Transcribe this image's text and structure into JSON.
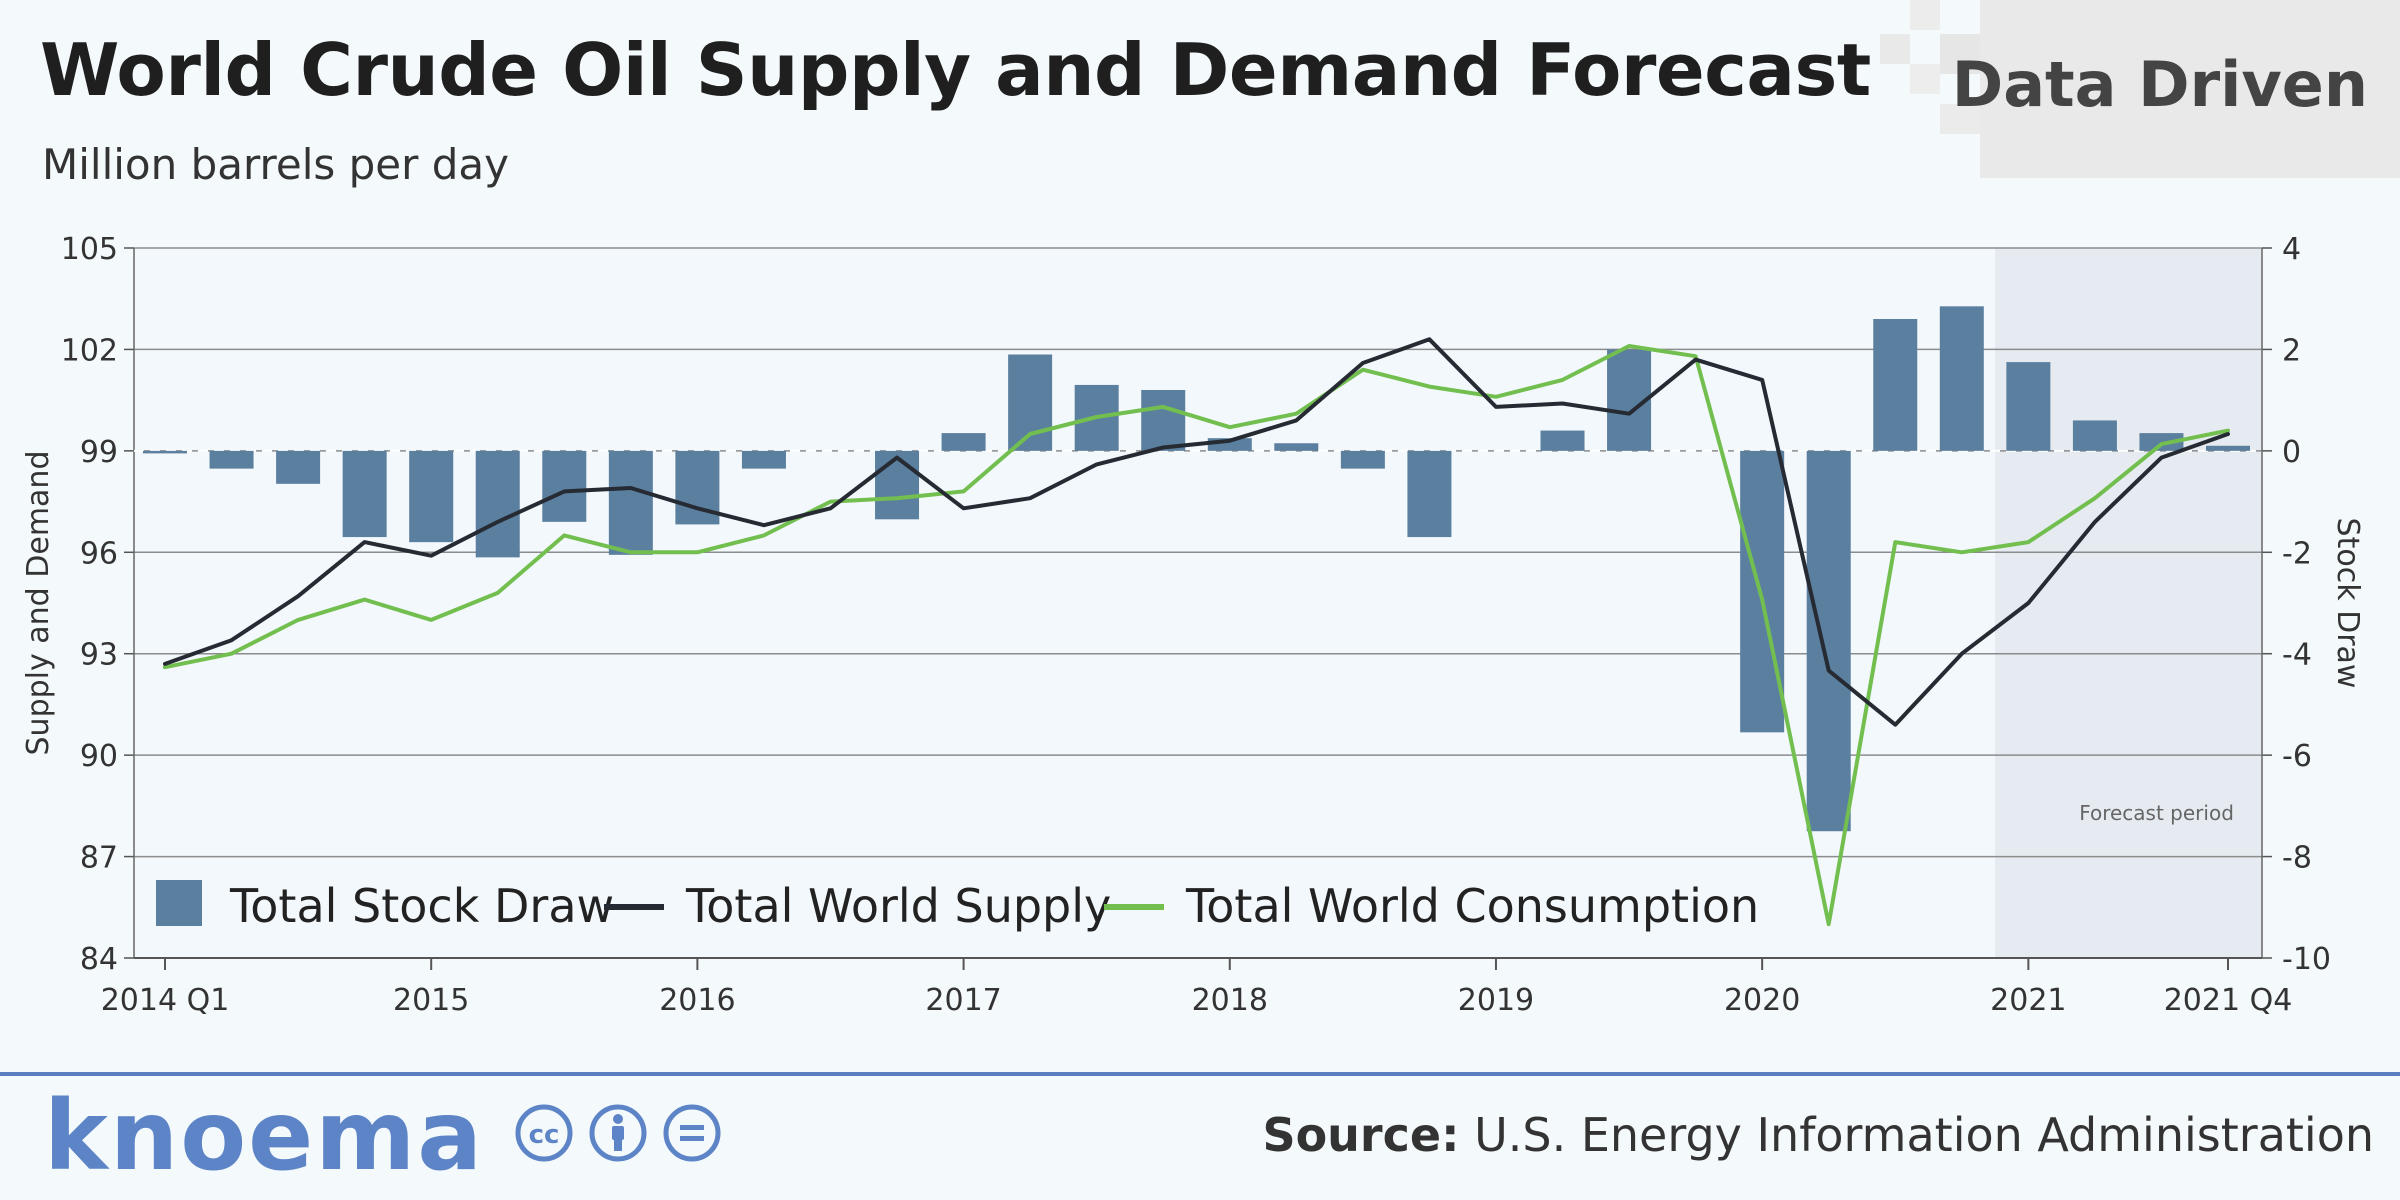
{
  "header": {
    "title": "World Crude Oil Supply and Demand Forecast",
    "subtitle": "Million barrels per day",
    "brand": "Data Driven"
  },
  "footer": {
    "logo": "knoema",
    "source_label": "Source:",
    "source_text": "U.S. Energy Information Administration",
    "license_icons": [
      "cc-icon",
      "by-icon",
      "nd-icon"
    ]
  },
  "colors": {
    "bars": "#5b7f9e",
    "supply": "#262b33",
    "consumption": "#72bf50",
    "forecast_bg": "#e5ebf0",
    "grid": "#8c8c8c"
  },
  "chart_data": {
    "type": "bar+line",
    "title": "World Crude Oil Supply and Demand Forecast",
    "subtitle": "Million barrels per day",
    "ylabel": "Supply and Demand",
    "y2label": "Stock Draw",
    "ylim": [
      84,
      105
    ],
    "y2lim": [
      -10,
      4
    ],
    "y_ticks": [
      105,
      102,
      99,
      96,
      93,
      90,
      87,
      84
    ],
    "y2_ticks": [
      4,
      2,
      0,
      -2,
      -4,
      -6,
      -8,
      -10
    ],
    "x_tick_labels": [
      {
        "index": 0,
        "label": "2014 Q1"
      },
      {
        "index": 4,
        "label": "2015"
      },
      {
        "index": 8,
        "label": "2016"
      },
      {
        "index": 12,
        "label": "2017"
      },
      {
        "index": 16,
        "label": "2018"
      },
      {
        "index": 20,
        "label": "2019"
      },
      {
        "index": 24,
        "label": "2020"
      },
      {
        "index": 28,
        "label": "2021"
      },
      {
        "index": 31,
        "label": "2021 Q4"
      }
    ],
    "quarters": [
      "2014 Q1",
      "2014 Q2",
      "2014 Q3",
      "2014 Q4",
      "2015 Q1",
      "2015 Q2",
      "2015 Q3",
      "2015 Q4",
      "2016 Q1",
      "2016 Q2",
      "2016 Q3",
      "2016 Q4",
      "2017 Q1",
      "2017 Q2",
      "2017 Q3",
      "2017 Q4",
      "2018 Q1",
      "2018 Q2",
      "2018 Q3",
      "2018 Q4",
      "2019 Q1",
      "2019 Q2",
      "2019 Q3",
      "2019 Q4",
      "2020 Q1",
      "2020 Q2",
      "2020 Q3",
      "2020 Q4",
      "2021 Q1",
      "2021 Q2",
      "2021 Q3",
      "2021 Q4"
    ],
    "forecast_start_index": 27.5,
    "forecast_label": "Forecast period",
    "legend_position": "bottom-left",
    "series": [
      {
        "name": "Total Stock Draw",
        "type": "bar",
        "axis": "right",
        "values": [
          -0.05,
          -0.35,
          -0.65,
          -1.7,
          -1.8,
          -2.1,
          -1.4,
          -2.05,
          -1.45,
          -0.35,
          0.0,
          -1.35,
          0.35,
          1.9,
          1.3,
          1.2,
          0.25,
          0.15,
          -0.35,
          -1.7,
          0.0,
          0.4,
          2.0,
          0.0,
          -5.55,
          -7.5,
          2.6,
          2.85,
          1.75,
          0.6,
          0.35,
          0.1
        ]
      },
      {
        "name": "Total World Supply",
        "type": "line",
        "axis": "left",
        "values": [
          92.7,
          93.4,
          94.7,
          96.3,
          95.9,
          96.9,
          97.8,
          97.9,
          97.3,
          96.8,
          97.3,
          98.8,
          97.3,
          97.6,
          98.6,
          99.1,
          99.3,
          99.9,
          101.6,
          102.3,
          100.3,
          100.4,
          100.1,
          101.7,
          101.1,
          92.5,
          90.9,
          93.0,
          94.5,
          96.9,
          98.8,
          99.5
        ]
      },
      {
        "name": "Total World Consumption",
        "type": "line",
        "axis": "left",
        "values": [
          92.6,
          93.0,
          94.0,
          94.6,
          94.0,
          94.8,
          96.5,
          96.0,
          96.0,
          96.5,
          97.5,
          97.6,
          97.8,
          99.5,
          100.0,
          100.3,
          99.7,
          100.1,
          101.4,
          100.9,
          100.6,
          101.1,
          102.1,
          101.8,
          94.6,
          85.0,
          96.3,
          96.0,
          96.3,
          97.6,
          99.2,
          99.6
        ]
      }
    ]
  }
}
